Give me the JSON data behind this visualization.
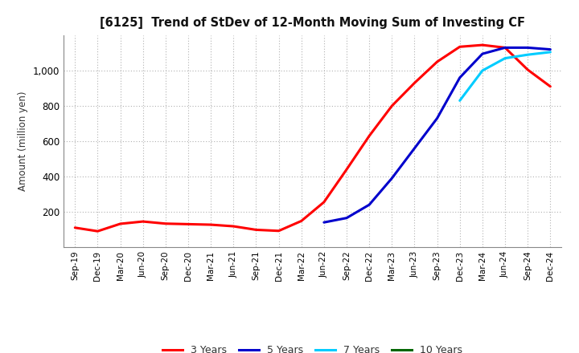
{
  "title": "[6125]  Trend of StDev of 12-Month Moving Sum of Investing CF",
  "ylabel": "Amount (million yen)",
  "background_color": "#ffffff",
  "grid_color": "#b0b0b0",
  "line_colors": {
    "3yr": "#ff0000",
    "5yr": "#0000cc",
    "7yr": "#00ccff",
    "10yr": "#006600"
  },
  "line_width": 2.2,
  "legend_labels": [
    "3 Years",
    "5 Years",
    "7 Years",
    "10 Years"
  ],
  "x_labels": [
    "Sep-19",
    "Dec-19",
    "Mar-20",
    "Jun-20",
    "Sep-20",
    "Dec-20",
    "Mar-21",
    "Jun-21",
    "Sep-21",
    "Dec-21",
    "Mar-22",
    "Jun-22",
    "Sep-22",
    "Dec-22",
    "Mar-23",
    "Jun-23",
    "Sep-23",
    "Dec-23",
    "Mar-24",
    "Jun-24",
    "Sep-24",
    "Dec-24"
  ],
  "ylim": [
    0,
    1200
  ],
  "yticks": [
    200,
    400,
    600,
    800,
    1000
  ],
  "series_3yr": [
    110,
    90,
    132,
    145,
    133,
    130,
    127,
    118,
    98,
    92,
    148,
    255,
    440,
    630,
    800,
    930,
    1050,
    1135,
    1145,
    1130,
    1005,
    910
  ],
  "series_5yr": [
    null,
    null,
    null,
    null,
    null,
    null,
    null,
    null,
    null,
    null,
    null,
    140,
    165,
    240,
    390,
    560,
    730,
    960,
    1095,
    1130,
    1130,
    1120
  ],
  "series_7yr": [
    null,
    null,
    null,
    null,
    null,
    null,
    null,
    null,
    null,
    null,
    null,
    null,
    null,
    null,
    null,
    null,
    null,
    830,
    1000,
    1070,
    1090,
    1105
  ],
  "series_10yr": []
}
